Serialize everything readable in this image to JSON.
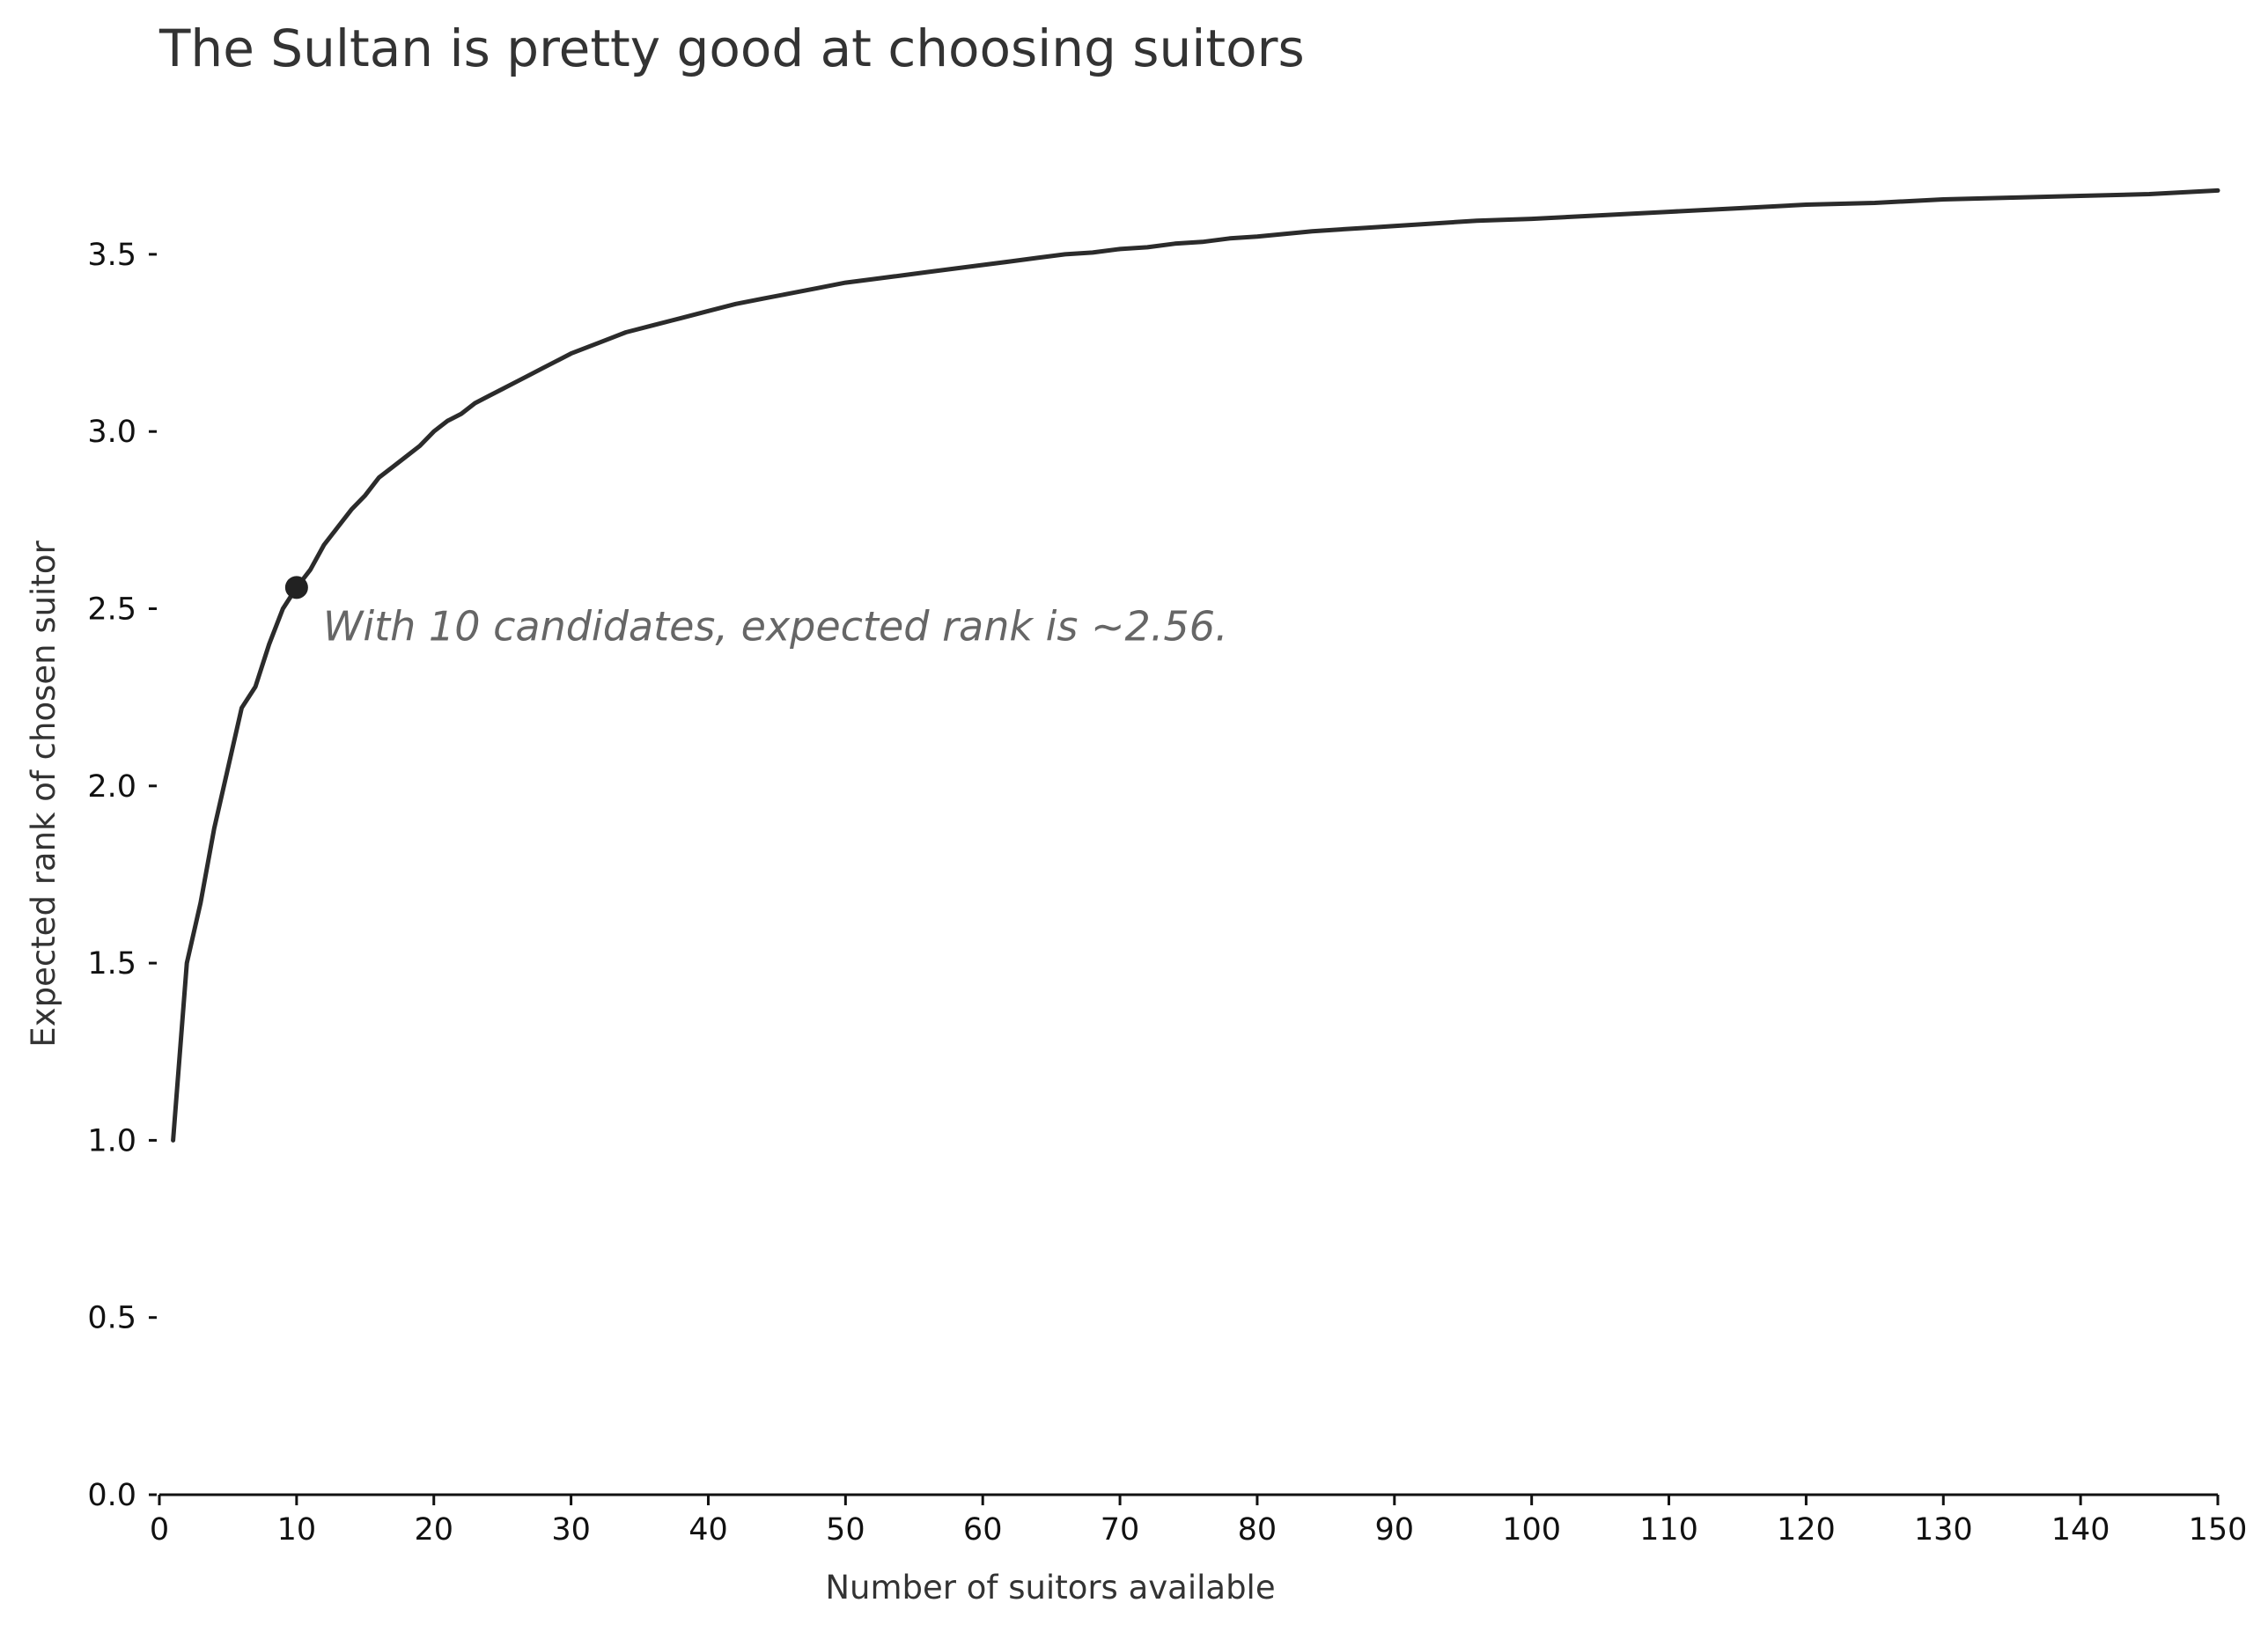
{
  "chart_data": {
    "type": "line",
    "title": "The Sultan is pretty good at choosing suitors",
    "xlabel": "Number of suitors available",
    "ylabel": "Expected rank of chosen suitor",
    "xlim": [
      0,
      150
    ],
    "ylim": [
      0,
      3.85
    ],
    "xticks": [
      0,
      10,
      20,
      30,
      40,
      50,
      60,
      70,
      80,
      90,
      100,
      110,
      120,
      130,
      140,
      150
    ],
    "xtick_labels": [
      "0",
      "10",
      "20",
      "30",
      "40",
      "50",
      "60",
      "70",
      "80",
      "90",
      "100",
      "110",
      "120",
      "130",
      "140",
      "150"
    ],
    "yticks": [
      0,
      0.5,
      1,
      1.5,
      2,
      2.5,
      3,
      3.5
    ],
    "ytick_labels": [
      "0.0",
      "0.5",
      "1.0",
      "1.5",
      "2.0",
      "2.5",
      "3.0",
      "3.5"
    ],
    "grid": false,
    "series": [
      {
        "color": "#2b2b2b",
        "x": [
          1,
          2,
          3,
          4,
          5,
          6,
          7,
          8,
          9,
          10,
          11,
          12,
          13,
          14,
          15,
          16,
          17,
          18,
          19,
          20,
          21,
          22,
          23,
          24,
          25,
          26,
          27,
          28,
          29,
          30,
          32,
          34,
          36,
          38,
          40,
          42,
          44,
          46,
          48,
          50,
          52,
          54,
          56,
          58,
          60,
          62,
          64,
          66,
          68,
          70,
          72,
          74,
          76,
          78,
          80,
          84,
          88,
          92,
          96,
          100,
          105,
          110,
          115,
          120,
          125,
          130,
          135,
          140,
          145,
          150
        ],
        "y": [
          1.0,
          1.5,
          1.67,
          1.88,
          2.05,
          2.22,
          2.28,
          2.4,
          2.5,
          2.56,
          2.61,
          2.68,
          2.73,
          2.78,
          2.82,
          2.87,
          2.9,
          2.93,
          2.96,
          3.0,
          3.03,
          3.05,
          3.08,
          3.1,
          3.12,
          3.14,
          3.16,
          3.18,
          3.2,
          3.22,
          3.25,
          3.28,
          3.3,
          3.32,
          3.34,
          3.36,
          3.375,
          3.39,
          3.405,
          3.42,
          3.43,
          3.44,
          3.45,
          3.46,
          3.47,
          3.48,
          3.49,
          3.5,
          3.505,
          3.515,
          3.52,
          3.53,
          3.535,
          3.545,
          3.55,
          3.565,
          3.575,
          3.585,
          3.595,
          3.6,
          3.61,
          3.62,
          3.63,
          3.64,
          3.645,
          3.655,
          3.66,
          3.665,
          3.67,
          3.68
        ]
      }
    ],
    "annotations": [
      {
        "x": 10,
        "y": 2.56,
        "text": "With 10 candidates, expected rank is ~2.56.",
        "marker_color": "#222222"
      }
    ]
  }
}
